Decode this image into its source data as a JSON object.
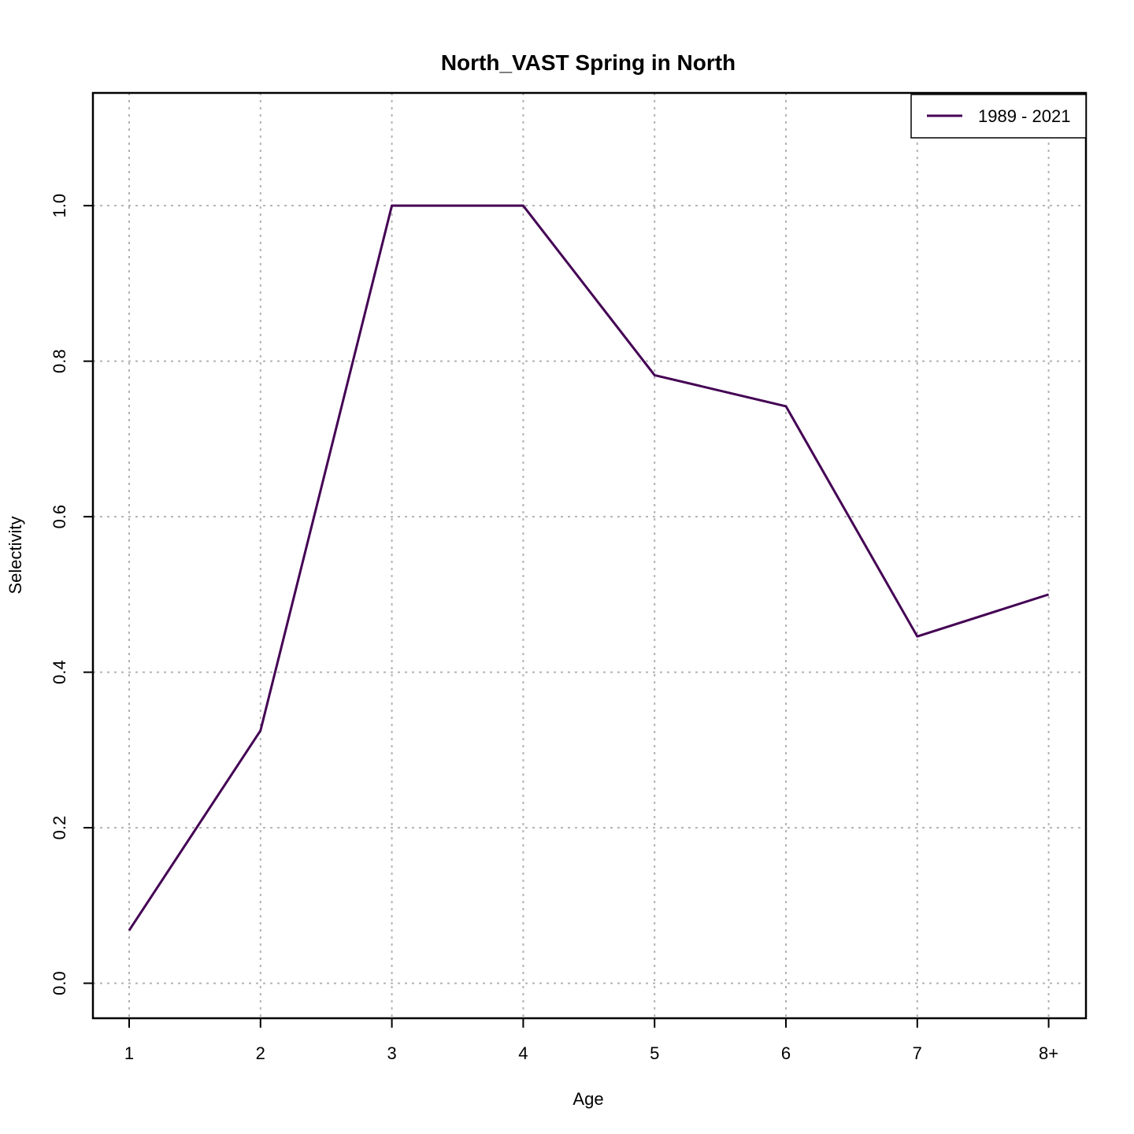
{
  "chart_data": {
    "type": "line",
    "title": "North_VAST Spring in North",
    "xlabel": "Age",
    "ylabel": "Selectivity",
    "categories": [
      "1",
      "2",
      "3",
      "4",
      "5",
      "6",
      "7",
      "8+"
    ],
    "ylim": [
      -0.045,
      1.145
    ],
    "yticks": [
      "0.0",
      "0.2",
      "0.4",
      "0.6",
      "0.8",
      "1.0"
    ],
    "grid": true,
    "legend_position": "top-right",
    "series": [
      {
        "name": "1989 - 2021",
        "color": "#440154",
        "values": [
          0.068,
          0.325,
          1.0,
          1.0,
          0.782,
          0.742,
          0.446,
          0.5
        ]
      }
    ]
  }
}
